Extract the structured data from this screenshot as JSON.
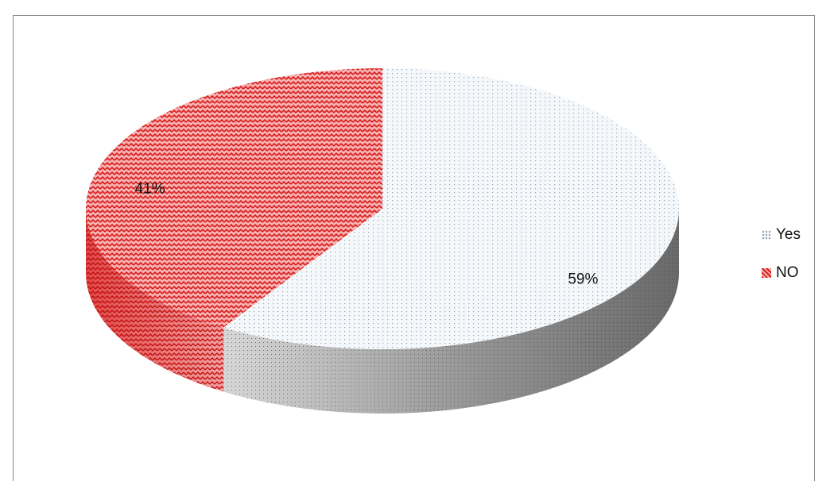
{
  "chart_data": {
    "type": "pie",
    "style": "3d",
    "categories": [
      "Yes",
      "NO"
    ],
    "values": [
      59,
      41
    ],
    "data_labels": [
      "59%",
      "41%"
    ],
    "legend": {
      "placement": "right",
      "entries": [
        "Yes",
        "NO"
      ]
    },
    "colors": {
      "Yes": "#f4f8fb",
      "NO": "#e32020",
      "side_shade": "#7f7f7f"
    }
  }
}
